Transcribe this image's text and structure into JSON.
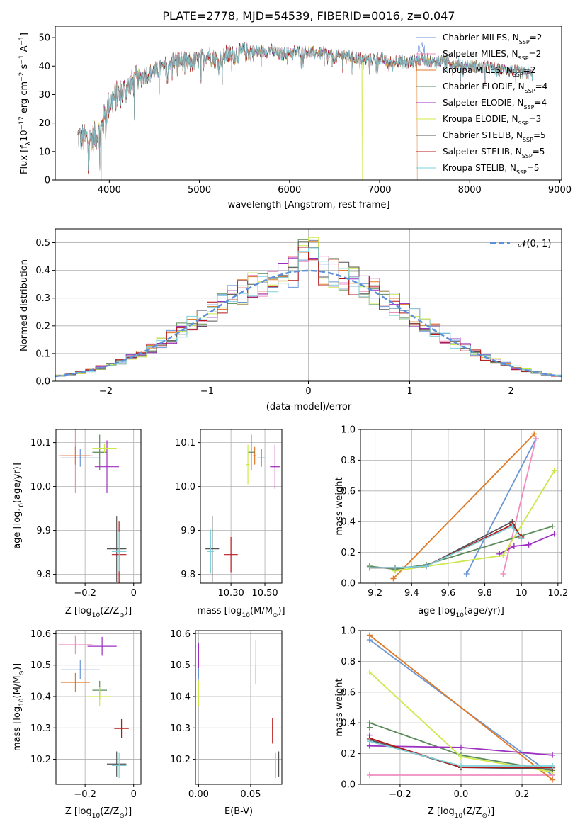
{
  "figure_title": "PLATE=2778, MJD=54539, FIBERID=0016, z=0.047",
  "series_styles": [
    {
      "name": "Chabrier MILES, N_SSP=2",
      "label_main": "Chabrier MILES, N",
      "label_sub": "SSP",
      "label_tail": "=2",
      "color": "#6a96d6"
    },
    {
      "name": "Salpeter MILES, N_SSP=2",
      "label_main": "Salpeter MILES, N",
      "label_sub": "SSP",
      "label_tail": "=2",
      "color": "#f08cc0"
    },
    {
      "name": "Kroupa MILES, N_SSP=2",
      "label_main": "Kroupa MILES, N",
      "label_sub": "SSP",
      "label_tail": "=2",
      "color": "#e07a26"
    },
    {
      "name": "Chabrier ELODIE, N_SSP=4",
      "label_main": "Chabrier ELODIE, N",
      "label_sub": "SSP",
      "label_tail": "=4",
      "color": "#5b8a5b"
    },
    {
      "name": "Salpeter ELODIE, N_SSP=4",
      "label_main": "Salpeter ELODIE, N",
      "label_sub": "SSP",
      "label_tail": "=4",
      "color": "#9c2fbf"
    },
    {
      "name": "Kroupa ELODIE, N_SSP=3",
      "label_main": "Kroupa ELODIE, N",
      "label_sub": "SSP",
      "label_tail": "=3",
      "color": "#cce84a"
    },
    {
      "name": "Chabrier STELIB, N_SSP=5",
      "label_main": "Chabrier STELIB, N",
      "label_sub": "SSP",
      "label_tail": "=5",
      "color": "#555555"
    },
    {
      "name": "Salpeter STELIB, N_SSP=5",
      "label_main": "Salpeter STELIB, N",
      "label_sub": "SSP",
      "label_tail": "=5",
      "color": "#b81818"
    },
    {
      "name": "Kroupa STELIB, N_SSP=5",
      "label_main": "Kroupa STELIB, N",
      "label_sub": "SSP",
      "label_tail": "=5",
      "color": "#7ecfd9"
    }
  ],
  "chart_data": [
    {
      "id": "spectrum",
      "type": "line",
      "xlabel": "wavelength [Angstrom, rest frame]",
      "ylabel_main": "Flux [f",
      "ylabel_sub": "λ",
      "ylabel_mid": "10",
      "ylabel_sup": "−17",
      "ylabel_tail1": " erg cm",
      "ylabel_sup2": "−2",
      "ylabel_tail2": " s",
      "ylabel_sup3": "−1",
      "ylabel_tail3": " A",
      "ylabel_sup4": "−1",
      "ylabel_end": "]",
      "xlim": [
        3400,
        9020
      ],
      "ylim": [
        0,
        54
      ],
      "xticks": [
        4000,
        5000,
        6000,
        7000,
        8000,
        9000
      ],
      "yticks": [
        0,
        10,
        20,
        30,
        40,
        50
      ],
      "continuum_points": [
        [
          3650,
          15
        ],
        [
          3800,
          14
        ],
        [
          3900,
          17
        ],
        [
          4000,
          27
        ],
        [
          4100,
          30
        ],
        [
          4200,
          32
        ],
        [
          4300,
          35
        ],
        [
          4400,
          37
        ],
        [
          4500,
          38
        ],
        [
          4600,
          39.5
        ],
        [
          4700,
          42
        ],
        [
          4800,
          42
        ],
        [
          4900,
          41
        ],
        [
          5000,
          42.5
        ],
        [
          5100,
          44
        ],
        [
          5200,
          42
        ],
        [
          5300,
          44
        ],
        [
          5400,
          44
        ],
        [
          5500,
          45
        ],
        [
          5600,
          45
        ],
        [
          5700,
          45
        ],
        [
          5800,
          45.5
        ],
        [
          5900,
          44
        ],
        [
          6000,
          45
        ],
        [
          6100,
          45
        ],
        [
          6200,
          45
        ],
        [
          6300,
          44.5
        ],
        [
          6400,
          44.5
        ],
        [
          6500,
          43
        ],
        [
          6600,
          44
        ],
        [
          6700,
          43
        ],
        [
          6800,
          42.5
        ],
        [
          6900,
          42
        ],
        [
          7000,
          43
        ],
        [
          7100,
          41
        ],
        [
          7200,
          42
        ],
        [
          7300,
          41
        ],
        [
          7400,
          42
        ],
        [
          7500,
          42.5
        ],
        [
          7600,
          41
        ],
        [
          7700,
          42
        ],
        [
          7800,
          41
        ],
        [
          7900,
          40.5
        ],
        [
          8000,
          40
        ],
        [
          8100,
          40
        ],
        [
          8200,
          39.5
        ],
        [
          8300,
          39
        ],
        [
          8400,
          38.5
        ],
        [
          8500,
          38
        ],
        [
          8600,
          37.5
        ],
        [
          8700,
          37
        ]
      ],
      "dropouts": [
        {
          "x": 3915,
          "series": "Kroupa ELODIE, N_SSP=3"
        },
        {
          "x": 6805,
          "series": "Kroupa ELODIE, N_SSP=3"
        },
        {
          "x": 7420,
          "series": "Kroupa MILES, N_SSP=2"
        }
      ]
    },
    {
      "id": "residual_hist",
      "type": "histogram",
      "xlabel": "(data-model)/error",
      "ylabel": "Normed distribution",
      "xlim": [
        -2.5,
        2.5
      ],
      "ylim": [
        0,
        0.55
      ],
      "xticks": [
        -2,
        -1,
        0,
        1,
        2
      ],
      "yticks": [
        0,
        0.1,
        0.2,
        0.3,
        0.4,
        0.5
      ],
      "reference_curve": {
        "name": "N(0,1)",
        "label": "𝒩(0, 1)",
        "color": "#5b8fd9",
        "style": "dashed"
      }
    },
    {
      "id": "age_vs_Z",
      "type": "errorbar",
      "xlabel_main": "Z [log",
      "xlabel_sub": "10",
      "xlabel_tail": "(Z/Z",
      "xlabel_sub2": "⊙",
      "xlabel_end": ")]",
      "ylabel_main": "age  [log",
      "ylabel_sub": "10",
      "ylabel_tail": "(age/yr)]",
      "xlim": [
        -0.32,
        0.03
      ],
      "ylim": [
        9.78,
        10.13
      ],
      "xticks": [
        -0.2,
        0.0
      ],
      "yticks": [
        9.8,
        9.9,
        10.0,
        10.1
      ],
      "points": [
        {
          "series": "Chabrier MILES, N_SSP=2",
          "x": -0.22,
          "xerr": 0.08,
          "y": 10.065,
          "yerr": 0.02
        },
        {
          "series": "Salpeter MILES, N_SSP=2",
          "x": -0.24,
          "xerr": 0.07,
          "y": 10.07,
          "yerr": 0.085
        },
        {
          "series": "Kroupa MILES, N_SSP=2",
          "x": -0.24,
          "xerr": 0.06,
          "y": 10.07,
          "yerr": 0.02
        },
        {
          "series": "Chabrier ELODIE, N_SSP=4",
          "x": -0.14,
          "xerr": 0.03,
          "y": 10.078,
          "yerr": 0.04
        },
        {
          "series": "Salpeter ELODIE, N_SSP=4",
          "x": -0.11,
          "xerr": 0.05,
          "y": 10.045,
          "yerr": 0.06
        },
        {
          "series": "Kroupa ELODIE, N_SSP=3",
          "x": -0.12,
          "xerr": 0.05,
          "y": 10.087,
          "yerr": 0.01
        },
        {
          "series": "Chabrier STELIB, N_SSP=5",
          "x": -0.07,
          "xerr": 0.04,
          "y": 9.858,
          "yerr": 0.075
        },
        {
          "series": "Salpeter STELIB, N_SSP=5",
          "x": -0.06,
          "xerr": 0.03,
          "y": 9.845,
          "yerr": 0.075
        },
        {
          "series": "Kroupa STELIB, N_SSP=5",
          "x": -0.06,
          "xerr": 0.03,
          "y": 9.852,
          "yerr": 0.045
        }
      ]
    },
    {
      "id": "age_vs_mass",
      "type": "errorbar",
      "xlabel_main": "mass [log",
      "xlabel_sub": "10",
      "xlabel_tail": "(M/M",
      "xlabel_sub2": "⊙",
      "xlabel_end": ")]",
      "xlim": [
        10.12,
        10.6
      ],
      "ylim": [
        9.78,
        10.13
      ],
      "xticks": [
        10.1,
        10.3,
        10.5
      ],
      "xticklabels": [
        "10.10",
        "10.30",
        "10.50"
      ],
      "yticks": [
        9.8,
        9.9,
        10.0,
        10.1
      ],
      "points": [
        {
          "series": "Chabrier MILES, N_SSP=2",
          "x": 10.48,
          "xerr": 0.02,
          "y": 10.065,
          "yerr": 0.02
        },
        {
          "series": "Salpeter MILES, N_SSP=2",
          "x": 10.56,
          "xerr": 0.02,
          "y": 10.045,
          "yerr": 0.05
        },
        {
          "series": "Kroupa MILES, N_SSP=2",
          "x": 10.44,
          "xerr": 0.01,
          "y": 10.07,
          "yerr": 0.02
        },
        {
          "series": "Chabrier ELODIE, N_SSP=4",
          "x": 10.42,
          "xerr": 0.02,
          "y": 10.078,
          "yerr": 0.04
        },
        {
          "series": "Salpeter ELODIE, N_SSP=4",
          "x": 10.56,
          "xerr": 0.03,
          "y": 10.045,
          "yerr": 0.05
        },
        {
          "series": "Kroupa ELODIE, N_SSP=3",
          "x": 10.4,
          "xerr": 0.01,
          "y": 10.05,
          "yerr": 0.045
        },
        {
          "series": "Chabrier STELIB, N_SSP=5",
          "x": 10.19,
          "xerr": 0.04,
          "y": 9.858,
          "yerr": 0.075
        },
        {
          "series": "Salpeter STELIB, N_SSP=5",
          "x": 10.3,
          "xerr": 0.04,
          "y": 9.845,
          "yerr": 0.04
        },
        {
          "series": "Kroupa STELIB, N_SSP=5",
          "x": 10.18,
          "xerr": 0.02,
          "y": 9.852,
          "yerr": 0.05
        }
      ]
    },
    {
      "id": "mass_weight_vs_age",
      "type": "line",
      "xlabel_main": "age  [log",
      "xlabel_sub": "10",
      "xlabel_tail": "(age/yr)]",
      "ylabel": "mass weight",
      "xlim": [
        9.12,
        10.22
      ],
      "ylim": [
        0,
        1.0
      ],
      "xticks": [
        9.2,
        9.4,
        9.6,
        9.8,
        10.0,
        10.2
      ],
      "yticks": [
        0,
        0.2,
        0.4,
        0.6,
        0.8,
        1.0
      ],
      "series": [
        {
          "name": "Chabrier MILES, N_SSP=2",
          "x": [
            9.7,
            10.08
          ],
          "y": [
            0.06,
            0.94
          ]
        },
        {
          "name": "Salpeter MILES, N_SSP=2",
          "x": [
            9.9,
            10.08
          ],
          "y": [
            0.06,
            0.94
          ]
        },
        {
          "name": "Kroupa MILES, N_SSP=2",
          "x": [
            9.3,
            10.07
          ],
          "y": [
            0.03,
            0.97
          ]
        },
        {
          "name": "Chabrier ELODIE, N_SSP=4",
          "x": [
            9.17,
            9.31,
            9.48,
            10.17
          ],
          "y": [
            0.11,
            0.09,
            0.12,
            0.37
          ]
        },
        {
          "name": "Salpeter ELODIE, N_SSP=4",
          "x": [
            9.88,
            9.96,
            10.04,
            10.18
          ],
          "y": [
            0.19,
            0.24,
            0.25,
            0.32
          ]
        },
        {
          "name": "Kroupa ELODIE, N_SSP=3",
          "x": [
            9.31,
            9.9,
            10.18
          ],
          "y": [
            0.08,
            0.18,
            0.73
          ]
        },
        {
          "name": "Chabrier STELIB, N_SSP=5",
          "x": [
            9.17,
            9.31,
            9.48,
            9.95,
            10.0
          ],
          "y": [
            0.1,
            0.1,
            0.11,
            0.4,
            0.29
          ]
        },
        {
          "name": "Salpeter STELIB, N_SSP=5",
          "x": [
            9.17,
            9.31,
            9.48,
            9.95,
            10.0
          ],
          "y": [
            0.1,
            0.1,
            0.11,
            0.38,
            0.3
          ]
        },
        {
          "name": "Kroupa STELIB, N_SSP=5",
          "x": [
            9.17,
            9.31,
            9.48,
            9.95,
            10.0
          ],
          "y": [
            0.1,
            0.1,
            0.11,
            0.37,
            0.29
          ]
        }
      ]
    },
    {
      "id": "mass_vs_Z",
      "type": "errorbar",
      "xlabel_main": "Z [log",
      "xlabel_sub": "10",
      "xlabel_tail": "(Z/Z",
      "xlabel_sub2": "⊙",
      "xlabel_end": ")]",
      "ylabel_main": "mass [log",
      "ylabel_sub": "10",
      "ylabel_tail": "(M/M",
      "ylabel_sub2": "⊙",
      "ylabel_end": ")]",
      "xlim": [
        -0.32,
        0.03
      ],
      "ylim": [
        10.12,
        10.61
      ],
      "xticks": [
        -0.2,
        0.0
      ],
      "yticks": [
        10.2,
        10.3,
        10.4,
        10.5,
        10.6
      ],
      "points": [
        {
          "series": "Chabrier MILES, N_SSP=2",
          "x": -0.22,
          "xerr": 0.08,
          "y": 10.485,
          "yerr": 0.03
        },
        {
          "series": "Salpeter MILES, N_SSP=2",
          "x": -0.24,
          "xerr": 0.07,
          "y": 10.565,
          "yerr": 0.03
        },
        {
          "series": "Kroupa MILES, N_SSP=2",
          "x": -0.24,
          "xerr": 0.06,
          "y": 10.445,
          "yerr": 0.03
        },
        {
          "series": "Chabrier ELODIE, N_SSP=4",
          "x": -0.14,
          "xerr": 0.03,
          "y": 10.42,
          "yerr": 0.03
        },
        {
          "series": "Salpeter ELODIE, N_SSP=4",
          "x": -0.13,
          "xerr": 0.06,
          "y": 10.56,
          "yerr": 0.03
        },
        {
          "series": "Kroupa ELODIE, N_SSP=3",
          "x": -0.14,
          "xerr": 0.05,
          "y": 10.4,
          "yerr": 0.03
        },
        {
          "series": "Chabrier STELIB, N_SSP=5",
          "x": -0.07,
          "xerr": 0.04,
          "y": 10.185,
          "yerr": 0.04
        },
        {
          "series": "Salpeter STELIB, N_SSP=5",
          "x": -0.05,
          "xerr": 0.03,
          "y": 10.298,
          "yerr": 0.03
        },
        {
          "series": "Kroupa STELIB, N_SSP=5",
          "x": -0.06,
          "xerr": 0.03,
          "y": 10.18,
          "yerr": 0.04
        }
      ]
    },
    {
      "id": "mass_vs_ebv",
      "type": "errorbar",
      "xlabel": "E(B-V)",
      "xlim": [
        -0.003,
        0.08
      ],
      "ylim": [
        10.12,
        10.61
      ],
      "xticks": [
        0.0,
        0.05
      ],
      "xticklabels": [
        "0.00",
        "0.05"
      ],
      "yticks": [
        10.2,
        10.3,
        10.4,
        10.5,
        10.6
      ],
      "points": [
        {
          "series": "Chabrier MILES, N_SSP=2",
          "x": 0.0,
          "xerr": 0,
          "y": 10.485,
          "yerr": 0.03
        },
        {
          "series": "Salpeter MILES, N_SSP=2",
          "x": 0.055,
          "xerr": 0,
          "y": 10.54,
          "yerr": 0.04
        },
        {
          "series": "Kroupa MILES, N_SSP=2",
          "x": 0.055,
          "xerr": 0,
          "y": 10.47,
          "yerr": 0.03
        },
        {
          "series": "Chabrier ELODIE, N_SSP=4",
          "x": 0.0,
          "xerr": 0,
          "y": 10.42,
          "yerr": 0.03
        },
        {
          "series": "Salpeter ELODIE, N_SSP=4",
          "x": 0.0,
          "xerr": 0,
          "y": 10.53,
          "yerr": 0.04
        },
        {
          "series": "Kroupa ELODIE, N_SSP=3",
          "x": 0.0,
          "xerr": 0,
          "y": 10.41,
          "yerr": 0.04
        },
        {
          "series": "Chabrier STELIB, N_SSP=5",
          "x": 0.077,
          "xerr": 0,
          "y": 10.185,
          "yerr": 0.04
        },
        {
          "series": "Salpeter STELIB, N_SSP=5",
          "x": 0.071,
          "xerr": 0,
          "y": 10.29,
          "yerr": 0.04
        },
        {
          "series": "Kroupa STELIB, N_SSP=5",
          "x": 0.074,
          "xerr": 0,
          "y": 10.18,
          "yerr": 0.04
        }
      ]
    },
    {
      "id": "mass_weight_vs_Z",
      "type": "line",
      "xlabel_main": "Z [log",
      "xlabel_sub": "10",
      "xlabel_tail": "(Z/Z",
      "xlabel_sub2": "⊙",
      "xlabel_end": ")]",
      "ylabel": "mass weight",
      "xlim": [
        -0.33,
        0.33
      ],
      "ylim": [
        0,
        1.0
      ],
      "xticks": [
        -0.2,
        0.0,
        0.2
      ],
      "xticklabels": [
        "−0.2",
        "0.0",
        "0.2"
      ],
      "yticks": [
        0,
        0.2,
        0.4,
        0.6,
        0.8,
        1.0
      ],
      "series": [
        {
          "name": "Chabrier MILES, N_SSP=2",
          "x": [
            -0.3,
            0.3
          ],
          "y": [
            0.94,
            0.06
          ]
        },
        {
          "name": "Salpeter MILES, N_SSP=2",
          "x": [
            -0.3,
            0.3
          ],
          "y": [
            0.06,
            0.06
          ]
        },
        {
          "name": "Kroupa MILES, N_SSP=2",
          "x": [
            -0.3,
            0.3
          ],
          "y": [
            0.97,
            0.03
          ]
        },
        {
          "name": "Chabrier ELODIE, N_SSP=4",
          "x": [
            -0.3,
            -0.3,
            0.0,
            0.3
          ],
          "y": [
            0.37,
            0.4,
            0.19,
            0.09
          ]
        },
        {
          "name": "Salpeter ELODIE, N_SSP=4",
          "x": [
            -0.3,
            -0.3,
            0.0,
            0.3
          ],
          "y": [
            0.32,
            0.25,
            0.24,
            0.19
          ]
        },
        {
          "name": "Kroupa ELODIE, N_SSP=3",
          "x": [
            -0.3,
            0.0,
            0.3
          ],
          "y": [
            0.73,
            0.18,
            0.08
          ]
        },
        {
          "name": "Chabrier STELIB, N_SSP=5",
          "x": [
            -0.3,
            0.0,
            0.3
          ],
          "y": [
            0.29,
            0.11,
            0.1
          ]
        },
        {
          "name": "Salpeter STELIB, N_SSP=5",
          "x": [
            -0.3,
            0.0,
            0.3
          ],
          "y": [
            0.3,
            0.11,
            0.11
          ]
        },
        {
          "name": "Kroupa STELIB, N_SSP=5",
          "x": [
            -0.3,
            0.0,
            0.3
          ],
          "y": [
            0.28,
            0.12,
            0.12
          ]
        }
      ]
    }
  ]
}
